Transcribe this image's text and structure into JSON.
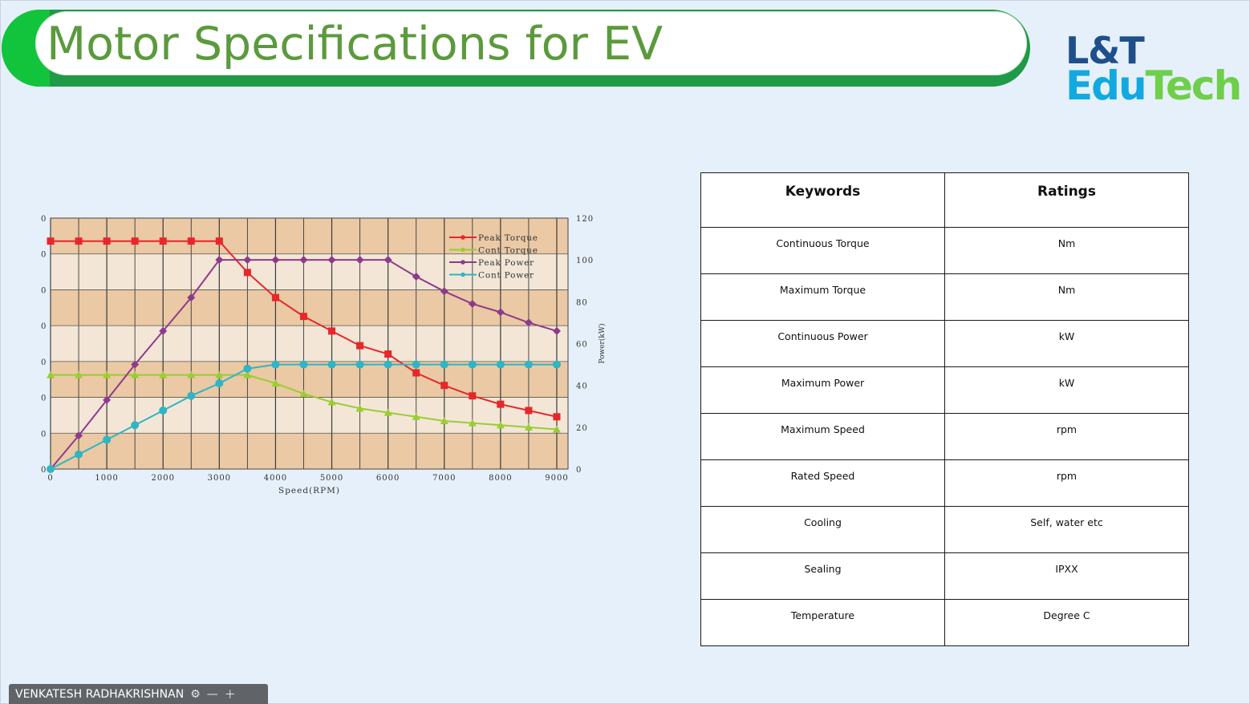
{
  "slide": {
    "title": "Motor Specifications for EV",
    "logo": {
      "line1": "L&T",
      "line2_a": "Edu",
      "line2_b": "Tech"
    }
  },
  "chart_data": {
    "type": "line",
    "xlabel": "Speed(RPM)",
    "ylabel_right": "Power(kW)",
    "x_ticks": [
      "0",
      "1000",
      "2000",
      "3000",
      "4000",
      "5000",
      "6000",
      "7000",
      "8000",
      "9000"
    ],
    "y_right_ticks": [
      "0",
      "20",
      "40",
      "60",
      "80",
      "100",
      "120"
    ],
    "y_left_ticks": [
      "0",
      "0",
      "0",
      "0",
      "0",
      "0",
      "0",
      "0"
    ],
    "xlim": [
      0,
      9200
    ],
    "ylim_right": [
      0,
      120
    ],
    "series": [
      {
        "name": "Peak Torque",
        "color": "#e8262b",
        "marker": "square",
        "x": [
          0,
          500,
          1000,
          1500,
          2000,
          2500,
          3000,
          3500,
          4000,
          4500,
          5000,
          5500,
          6000,
          6500,
          7000,
          7500,
          8000,
          8500,
          9000
        ],
        "y": [
          109,
          109,
          109,
          109,
          109,
          109,
          109,
          94,
          82,
          73,
          66,
          59,
          55,
          46,
          40,
          35,
          31,
          28,
          25
        ]
      },
      {
        "name": "Cont Torque",
        "color": "#9acd32",
        "marker": "triangle",
        "x": [
          0,
          500,
          1000,
          1500,
          2000,
          2500,
          3000,
          3500,
          4000,
          4500,
          5000,
          5500,
          6000,
          6500,
          7000,
          7500,
          8000,
          8500,
          9000
        ],
        "y": [
          45,
          45,
          45,
          45,
          45,
          45,
          45,
          45,
          41,
          36,
          32,
          29,
          27,
          25,
          23,
          22,
          21,
          20,
          19
        ]
      },
      {
        "name": "Peak Power",
        "color": "#8e3a8c",
        "marker": "diamond",
        "x": [
          0,
          500,
          1000,
          1500,
          2000,
          2500,
          3000,
          3500,
          4000,
          4500,
          5000,
          5500,
          6000,
          6500,
          7000,
          7500,
          8000,
          8500,
          9000
        ],
        "y": [
          0,
          16,
          33,
          50,
          66,
          82,
          100,
          100,
          100,
          100,
          100,
          100,
          100,
          92,
          85,
          79,
          75,
          70,
          66
        ]
      },
      {
        "name": "Cont Power",
        "color": "#2fb5c4",
        "marker": "circle",
        "x": [
          0,
          500,
          1000,
          1500,
          2000,
          2500,
          3000,
          3500,
          4000,
          4500,
          5000,
          5500,
          6000,
          6500,
          7000,
          7500,
          8000,
          8500,
          9000
        ],
        "y": [
          0,
          7,
          14,
          21,
          28,
          35,
          41,
          48,
          50,
          50,
          50,
          50,
          50,
          50,
          50,
          50,
          50,
          50,
          50
        ]
      }
    ],
    "legend_position": "top-right",
    "grid": true
  },
  "table": {
    "headers": [
      "Keywords",
      "Ratings"
    ],
    "rows": [
      {
        "keyword": "Continuous Torque",
        "rating": "Nm"
      },
      {
        "keyword": "Maximum Torque",
        "rating": "Nm"
      },
      {
        "keyword": "Continuous  Power",
        "rating": "kW"
      },
      {
        "keyword": "Maximum Power",
        "rating": "kW"
      },
      {
        "keyword": "Maximum  Speed",
        "rating": "rpm"
      },
      {
        "keyword": "Rated Speed",
        "rating": "rpm"
      },
      {
        "keyword": "Cooling",
        "rating": "Self, water etc"
      },
      {
        "keyword": "Sealing",
        "rating": "IPXX"
      },
      {
        "keyword": "Temperature",
        "rating": "Degree C"
      }
    ]
  },
  "presenter": {
    "name": "VENKATESH RADHAKRISHNAN",
    "icons": [
      "presenter-status-icon",
      "minimize-icon",
      "expand-icon"
    ]
  }
}
